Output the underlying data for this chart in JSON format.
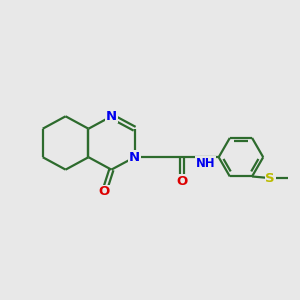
{
  "bg_color": "#e8e8e8",
  "bond_color": "#2d6b2d",
  "N_color": "#0000ee",
  "O_color": "#dd0000",
  "S_color": "#bbbb00",
  "line_width": 1.6,
  "font_size": 9.5,
  "xlim": [
    -3.2,
    5.8
  ],
  "ylim": [
    -1.8,
    1.8
  ]
}
